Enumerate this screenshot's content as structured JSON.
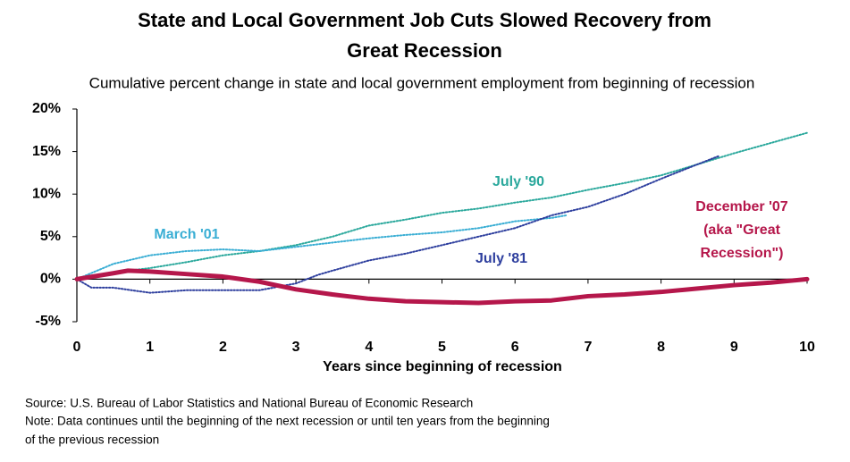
{
  "chart_data": {
    "type": "line",
    "title_lines": [
      "State and Local Government Job Cuts Slowed Recovery from",
      "Great Recession"
    ],
    "subtitle": "Cumulative percent change in state and local government employment from beginning of recession",
    "x_label": "Years since beginning of recession",
    "xlim": [
      0,
      10
    ],
    "xticks": [
      0,
      1,
      2,
      3,
      4,
      5,
      6,
      7,
      8,
      9,
      10
    ],
    "ylim": [
      -5,
      20
    ],
    "yticks": [
      {
        "value": -5,
        "label": "-5%"
      },
      {
        "value": 0,
        "label": "0%"
      },
      {
        "value": 5,
        "label": "5%"
      },
      {
        "value": 10,
        "label": "10%"
      },
      {
        "value": 15,
        "label": "15%"
      },
      {
        "value": 20,
        "label": "20%"
      }
    ],
    "grid": false,
    "series": [
      {
        "name": "July '90",
        "color": "#2aa89c",
        "style": "dotted",
        "x": [
          0,
          0.5,
          1,
          1.5,
          2,
          2.5,
          3,
          3.5,
          4,
          4.5,
          5,
          5.5,
          6,
          6.5,
          7,
          7.5,
          8,
          8.5,
          9,
          9.5,
          10
        ],
        "values": [
          0,
          0.8,
          1.3,
          2,
          2.8,
          3.3,
          4,
          5,
          6.3,
          7,
          7.8,
          8.3,
          9,
          9.6,
          10.5,
          11.3,
          12.2,
          13.5,
          14.8,
          16,
          17.2
        ]
      },
      {
        "name": "March '01",
        "color": "#3aaed4",
        "style": "dotted",
        "x": [
          0,
          0.5,
          1,
          1.5,
          2,
          2.5,
          3,
          3.5,
          4,
          4.5,
          5,
          5.5,
          6,
          6.5,
          6.7
        ],
        "values": [
          0,
          1.8,
          2.8,
          3.3,
          3.5,
          3.3,
          3.8,
          4.3,
          4.8,
          5.2,
          5.5,
          6,
          6.8,
          7.2,
          7.5
        ]
      },
      {
        "name": "July '81",
        "color": "#2e3f9e",
        "style": "dotted",
        "x": [
          0,
          0.2,
          0.5,
          1,
          1.5,
          2,
          2.5,
          3,
          3.3,
          3.5,
          4,
          4.5,
          5,
          5.5,
          6,
          6.5,
          7,
          7.5,
          8,
          8.5,
          8.8
        ],
        "values": [
          0,
          -1,
          -1,
          -1.6,
          -1.3,
          -1.3,
          -1.3,
          -0.5,
          0.5,
          1,
          2.2,
          3,
          4,
          5,
          6,
          7.5,
          8.5,
          10,
          11.8,
          13.5,
          14.5
        ]
      },
      {
        "name": "December '07",
        "color": "#b5174b",
        "style": "solid",
        "x": [
          0,
          0.5,
          0.7,
          1,
          1.5,
          2,
          2.5,
          3,
          3.5,
          4,
          4.5,
          5,
          5.5,
          6,
          6.5,
          7,
          7.5,
          8,
          8.5,
          9,
          9.5,
          10
        ],
        "values": [
          0,
          0.7,
          1,
          0.9,
          0.6,
          0.3,
          -0.3,
          -1.2,
          -1.8,
          -2.3,
          -2.6,
          -2.7,
          -2.8,
          -2.6,
          -2.5,
          -2,
          -1.8,
          -1.5,
          -1.1,
          -0.7,
          -0.4,
          0
        ]
      }
    ],
    "annotation_lines": [
      "(aka \"Great",
      "Recession\")"
    ],
    "source": "Source: U.S. Bureau of Labor Statistics and National Bureau of Economic Research",
    "note_lines": [
      "Note: Data continues until the beginning of the next recession or until ten years from the beginning",
      "of the previous recession"
    ]
  }
}
